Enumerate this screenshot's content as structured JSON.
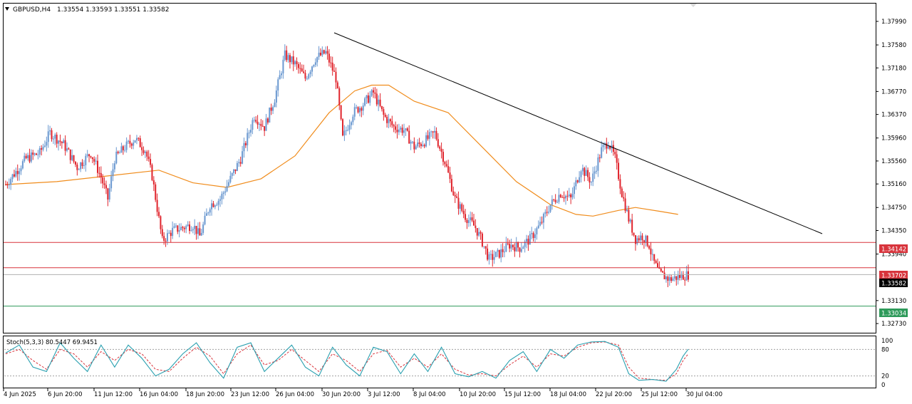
{
  "header": {
    "symbol_timeframe": "GBPUSD,H4",
    "ohlc": "1.33554 1.33593 1.33551 1.33582"
  },
  "stoch_label": "Stoch(5,3,3) 80.5447 69.9451",
  "colors": {
    "bull": "#6a98d0",
    "bear": "#e0242c",
    "ma": "#f08c1c",
    "trendline": "#000000",
    "resistance": "#d8343c",
    "support": "#2e9a5a",
    "current": "#000000",
    "stoch_main": "#2aa0b0",
    "stoch_signal": "#d8343c"
  },
  "price_axis": {
    "ticks": [
      "1.37990",
      "1.37580",
      "1.37180",
      "1.36770",
      "1.36370",
      "1.35960",
      "1.35560",
      "1.35160",
      "1.34750",
      "1.34350",
      "1.33940",
      "1.33130",
      "1.32730"
    ]
  },
  "lines": {
    "resistance_1": "1.34142",
    "resistance_2": "1.33702",
    "current": "1.33582",
    "support": "1.33034"
  },
  "stoch_axis": {
    "ticks": [
      "100",
      "80",
      "20",
      "0"
    ]
  },
  "time_axis": {
    "labels": [
      "4 Jun 2025",
      "6 Jun 20:00",
      "11 Jun 12:00",
      "16 Jun 04:00",
      "18 Jun 20:00",
      "23 Jun 12:00",
      "26 Jun 04:00",
      "30 Jun 20:00",
      "3 Jul 12:00",
      "8 Jul 04:00",
      "10 Jul 20:00",
      "15 Jul 12:00",
      "18 Jul 04:00",
      "22 Jul 20:00",
      "25 Jul 12:00",
      "30 Jul 04:00"
    ]
  },
  "chart_data": {
    "type": "candlestick",
    "symbol": "GBPUSD",
    "timeframe": "H4",
    "ylim": [
      1.3257,
      1.383
    ],
    "indicators": [
      "moving average (orange)",
      "Stoch(5,3,3)",
      "descending trendline"
    ],
    "horizontal_levels": [
      1.34142,
      1.33702,
      1.33582,
      1.33034
    ],
    "trendline": {
      "from": {
        "x": "30 Jun",
        "y": 1.3789
      },
      "to": {
        "x": "30 Jul",
        "y": 1.3446
      }
    },
    "close_path": [
      [
        0,
        1.3515
      ],
      [
        12,
        1.356
      ],
      [
        20,
        1.357
      ],
      [
        26,
        1.3605
      ],
      [
        34,
        1.3585
      ],
      [
        42,
        1.3545
      ],
      [
        50,
        1.357
      ],
      [
        56,
        1.3528
      ],
      [
        60,
        1.349
      ],
      [
        64,
        1.356
      ],
      [
        70,
        1.358
      ],
      [
        76,
        1.3595
      ],
      [
        82,
        1.3575
      ],
      [
        86,
        1.353
      ],
      [
        92,
        1.3417
      ],
      [
        98,
        1.3435
      ],
      [
        104,
        1.344
      ],
      [
        110,
        1.3445
      ],
      [
        114,
        1.3425
      ],
      [
        120,
        1.348
      ],
      [
        126,
        1.349
      ],
      [
        132,
        1.3525
      ],
      [
        138,
        1.356
      ],
      [
        146,
        1.3635
      ],
      [
        152,
        1.3615
      ],
      [
        158,
        1.3665
      ],
      [
        164,
        1.374
      ],
      [
        170,
        1.3725
      ],
      [
        176,
        1.37
      ],
      [
        182,
        1.3735
      ],
      [
        188,
        1.3745
      ],
      [
        194,
        1.37
      ],
      [
        198,
        1.3595
      ],
      [
        204,
        1.364
      ],
      [
        210,
        1.3655
      ],
      [
        216,
        1.3675
      ],
      [
        222,
        1.3635
      ],
      [
        228,
        1.3615
      ],
      [
        234,
        1.361
      ],
      [
        240,
        1.358
      ],
      [
        246,
        1.359
      ],
      [
        252,
        1.3605
      ],
      [
        258,
        1.3555
      ],
      [
        264,
        1.349
      ],
      [
        270,
        1.346
      ],
      [
        276,
        1.344
      ],
      [
        280,
        1.3415
      ],
      [
        284,
        1.3385
      ],
      [
        290,
        1.3395
      ],
      [
        296,
        1.341
      ],
      [
        302,
        1.3405
      ],
      [
        308,
        1.342
      ],
      [
        314,
        1.3445
      ],
      [
        320,
        1.348
      ],
      [
        326,
        1.35
      ],
      [
        332,
        1.349
      ],
      [
        338,
        1.3545
      ],
      [
        344,
        1.352
      ],
      [
        350,
        1.3575
      ],
      [
        354,
        1.359
      ],
      [
        358,
        1.356
      ],
      [
        362,
        1.35
      ],
      [
        366,
        1.3455
      ],
      [
        370,
        1.342
      ],
      [
        374,
        1.3425
      ],
      [
        378,
        1.341
      ],
      [
        380,
        1.3385
      ],
      [
        384,
        1.336
      ],
      [
        390,
        1.335
      ],
      [
        396,
        1.3355
      ],
      [
        401,
        1.3358
      ]
    ],
    "ma_path": [
      [
        0,
        1.3515
      ],
      [
        30,
        1.352
      ],
      [
        60,
        1.353
      ],
      [
        90,
        1.354
      ],
      [
        110,
        1.3518
      ],
      [
        130,
        1.351
      ],
      [
        150,
        1.3525
      ],
      [
        170,
        1.3565
      ],
      [
        190,
        1.364
      ],
      [
        205,
        1.3678
      ],
      [
        215,
        1.3688
      ],
      [
        225,
        1.3688
      ],
      [
        240,
        1.366
      ],
      [
        260,
        1.364
      ],
      [
        280,
        1.358
      ],
      [
        300,
        1.352
      ],
      [
        320,
        1.348
      ],
      [
        335,
        1.3463
      ],
      [
        345,
        1.346
      ],
      [
        360,
        1.347
      ],
      [
        370,
        1.3475
      ],
      [
        385,
        1.3468
      ],
      [
        395,
        1.3463
      ]
    ],
    "stoch_main_path": [
      [
        0,
        72
      ],
      [
        8,
        90
      ],
      [
        16,
        40
      ],
      [
        24,
        30
      ],
      [
        32,
        95
      ],
      [
        40,
        60
      ],
      [
        48,
        30
      ],
      [
        56,
        90
      ],
      [
        64,
        40
      ],
      [
        72,
        90
      ],
      [
        80,
        60
      ],
      [
        88,
        20
      ],
      [
        96,
        35
      ],
      [
        104,
        70
      ],
      [
        112,
        95
      ],
      [
        120,
        50
      ],
      [
        128,
        15
      ],
      [
        136,
        85
      ],
      [
        144,
        95
      ],
      [
        152,
        30
      ],
      [
        160,
        60
      ],
      [
        168,
        90
      ],
      [
        176,
        40
      ],
      [
        184,
        20
      ],
      [
        192,
        85
      ],
      [
        200,
        45
      ],
      [
        208,
        20
      ],
      [
        216,
        85
      ],
      [
        224,
        75
      ],
      [
        232,
        25
      ],
      [
        240,
        70
      ],
      [
        248,
        30
      ],
      [
        256,
        85
      ],
      [
        264,
        25
      ],
      [
        272,
        18
      ],
      [
        280,
        30
      ],
      [
        288,
        15
      ],
      [
        296,
        55
      ],
      [
        304,
        75
      ],
      [
        312,
        30
      ],
      [
        320,
        80
      ],
      [
        328,
        60
      ],
      [
        336,
        90
      ],
      [
        344,
        97
      ],
      [
        352,
        98
      ],
      [
        360,
        85
      ],
      [
        366,
        25
      ],
      [
        372,
        10
      ],
      [
        380,
        12
      ],
      [
        388,
        8
      ],
      [
        394,
        35
      ],
      [
        398,
        65
      ],
      [
        401,
        80.5447
      ]
    ],
    "stoch_signal_path": [
      [
        0,
        70
      ],
      [
        8,
        80
      ],
      [
        16,
        55
      ],
      [
        24,
        35
      ],
      [
        32,
        80
      ],
      [
        40,
        70
      ],
      [
        48,
        40
      ],
      [
        56,
        75
      ],
      [
        64,
        55
      ],
      [
        72,
        80
      ],
      [
        80,
        70
      ],
      [
        88,
        35
      ],
      [
        96,
        30
      ],
      [
        104,
        60
      ],
      [
        112,
        85
      ],
      [
        120,
        65
      ],
      [
        128,
        25
      ],
      [
        136,
        70
      ],
      [
        144,
        90
      ],
      [
        152,
        45
      ],
      [
        160,
        55
      ],
      [
        168,
        80
      ],
      [
        176,
        55
      ],
      [
        184,
        30
      ],
      [
        192,
        70
      ],
      [
        200,
        55
      ],
      [
        208,
        30
      ],
      [
        216,
        70
      ],
      [
        224,
        78
      ],
      [
        232,
        40
      ],
      [
        240,
        60
      ],
      [
        248,
        40
      ],
      [
        256,
        70
      ],
      [
        264,
        35
      ],
      [
        272,
        22
      ],
      [
        280,
        25
      ],
      [
        288,
        20
      ],
      [
        296,
        45
      ],
      [
        304,
        65
      ],
      [
        312,
        40
      ],
      [
        320,
        70
      ],
      [
        328,
        65
      ],
      [
        336,
        85
      ],
      [
        344,
        95
      ],
      [
        352,
        97
      ],
      [
        360,
        90
      ],
      [
        366,
        40
      ],
      [
        372,
        15
      ],
      [
        380,
        12
      ],
      [
        388,
        10
      ],
      [
        394,
        25
      ],
      [
        398,
        55
      ],
      [
        401,
        69.9451
      ]
    ]
  }
}
